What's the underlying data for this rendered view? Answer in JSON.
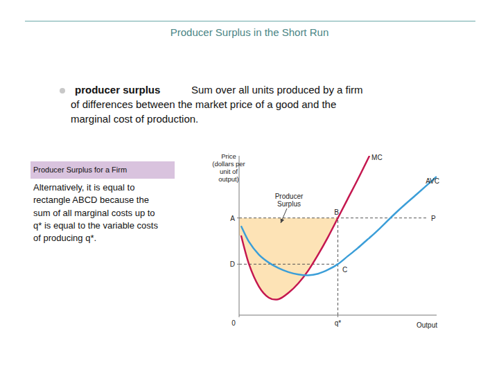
{
  "slide": {
    "title": "Producer Surplus in the Short Run",
    "bullet": {
      "term": "producer surplus",
      "definition_lines": [
        "Sum over all units produced by a firm",
        "of differences between the market price of a good and the",
        "marginal cost of production."
      ]
    },
    "box": {
      "heading": "Producer Surplus for a Firm",
      "lines": [
        "Alternatively, it is equal to",
        "rectangle ABCD because the",
        "sum of all marginal costs up to",
        "q* is equal to the variable costs",
        "of producing q*."
      ]
    }
  },
  "chart_data": {
    "type": "line",
    "y_label": [
      "Price",
      "(dollars per",
      "unit of",
      "output)"
    ],
    "x_label": "Output",
    "x": [
      0.1,
      0.5,
      1,
      1.5,
      2,
      2.5,
      3,
      3.5,
      4,
      4.5,
      5,
      5.5,
      6,
      6.5,
      6.6,
      7,
      8,
      9,
      10
    ],
    "series": [
      {
        "name": "MC",
        "color": "#c4174f",
        "values": [
          5.0,
          3.2,
          1.8,
          1.1,
          1.0,
          1.4,
          2.0,
          2.8,
          3.8,
          4.9,
          6.1,
          7.3,
          8.5,
          9.75,
          10.0,
          null,
          null,
          null,
          null
        ]
      },
      {
        "name": "AVC",
        "color": "#3b9ed8",
        "values": [
          5.6,
          4.6,
          3.8,
          3.3,
          2.95,
          2.7,
          2.55,
          2.5,
          2.6,
          2.85,
          3.2,
          3.7,
          4.2,
          4.75,
          4.85,
          5.3,
          6.5,
          7.6,
          8.7
        ]
      }
    ],
    "xlim": [
      0,
      10
    ],
    "ylim": [
      0,
      10
    ],
    "xticks": [
      {
        "value": 0,
        "label": "0"
      },
      {
        "value": 5,
        "label": "q*"
      }
    ],
    "yticks": [
      {
        "value": 6.1,
        "label": "A"
      },
      {
        "value": 3.2,
        "label": "D"
      }
    ],
    "price": {
      "value": 6.1,
      "label": "P"
    },
    "points": [
      {
        "label": "B",
        "x": 5,
        "y": 6.1
      },
      {
        "label": "C",
        "x": 5,
        "y": 3.2
      }
    ],
    "shaded_area": {
      "label": [
        "Producer",
        "Surplus"
      ],
      "color": "#fde3b6"
    }
  }
}
